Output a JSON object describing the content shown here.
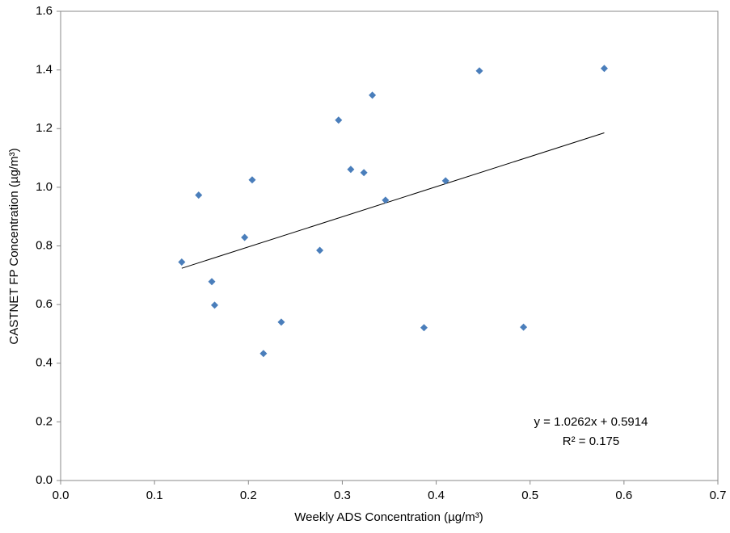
{
  "chart_data": {
    "type": "scatter",
    "x_label": "Weekly ADS Concentration (µg/m³)",
    "y_label": "CASTNET FP Concentration (µg/m³)",
    "x": [
      0.129,
      0.147,
      0.161,
      0.164,
      0.196,
      0.204,
      0.216,
      0.235,
      0.276,
      0.296,
      0.309,
      0.323,
      0.332,
      0.346,
      0.387,
      0.41,
      0.446,
      0.493,
      0.579
    ],
    "values": [
      0.745,
      0.973,
      0.678,
      0.598,
      0.829,
      1.025,
      0.433,
      0.54,
      0.785,
      1.229,
      1.061,
      1.05,
      1.314,
      0.956,
      0.521,
      1.022,
      1.397,
      0.523,
      1.405
    ],
    "color": "#4a7ebb",
    "xlim": [
      0,
      0.7
    ],
    "xticks": [
      {
        "value": 0,
        "label": "0.0"
      },
      0.1,
      0.2,
      0.3,
      0.4,
      0.5,
      0.6,
      0.7
    ],
    "ylim": [
      0,
      1.6
    ],
    "yticks": [
      {
        "value": 0,
        "label": "0.0"
      },
      0.2,
      0.4,
      0.6,
      0.8,
      {
        "value": 1,
        "label": "1.0"
      },
      1.2,
      1.4,
      1.6
    ],
    "grid": false,
    "trendline": {
      "slope": 1.0262,
      "intercept": 0.5914,
      "color": "#000000",
      "equation": "y = 1.0262x + 0.5914",
      "r_squared": "R² = 0.175"
    }
  }
}
